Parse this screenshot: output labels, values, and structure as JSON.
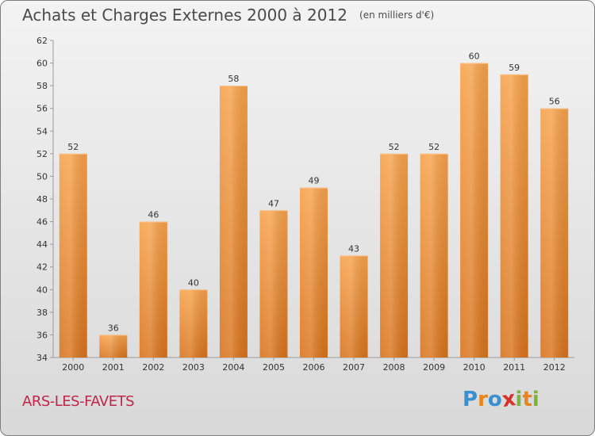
{
  "header": {
    "title": "Achats et Charges Externes 2000 à 2012",
    "unit": "(en milliers d'€)"
  },
  "footer": {
    "commune": "ARS-LES-FAVETS",
    "logo_letters": [
      "P",
      "r",
      "o",
      "x",
      "i",
      "t",
      "i"
    ],
    "logo_colors": [
      "#3a8fd0",
      "#e8861c",
      "#3a8fd0",
      "#d8302a",
      "#7fb23c",
      "#e8861c",
      "#7fb23c"
    ]
  },
  "chart_data": {
    "type": "bar",
    "categories": [
      "2000",
      "2001",
      "2002",
      "2003",
      "2004",
      "2005",
      "2006",
      "2007",
      "2008",
      "2009",
      "2010",
      "2011",
      "2012"
    ],
    "values": [
      52,
      36,
      46,
      40,
      58,
      47,
      49,
      43,
      52,
      52,
      60,
      59,
      56
    ],
    "title": "Achats et Charges Externes 2000 à 2012",
    "ylim": [
      34,
      62
    ],
    "yticks": [
      34,
      36,
      38,
      40,
      42,
      44,
      46,
      48,
      50,
      52,
      54,
      56,
      58,
      60,
      62
    ],
    "grid": false,
    "bar_color": "#f0902e",
    "legend": "none"
  }
}
